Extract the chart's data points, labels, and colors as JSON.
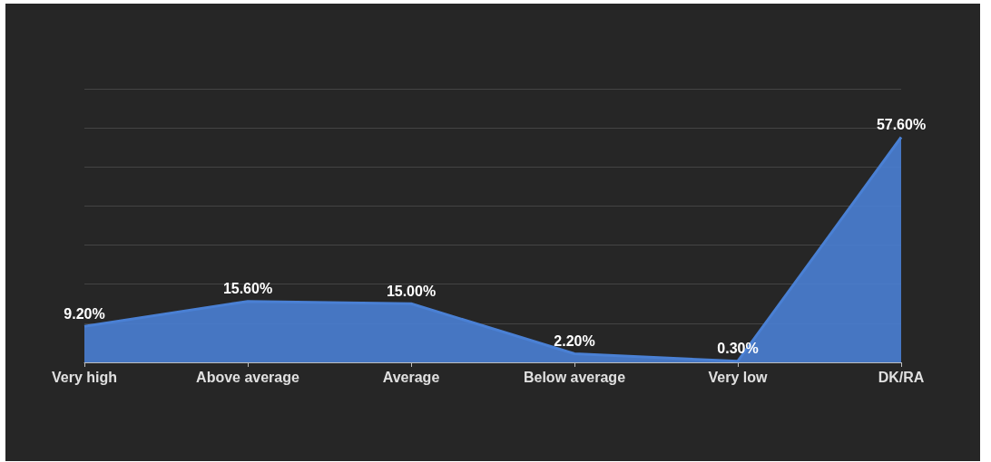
{
  "chart_data": {
    "type": "area",
    "categories": [
      "Very high",
      "Above average",
      "Average",
      "Below average",
      "Very low",
      "DK/RA"
    ],
    "series": [
      {
        "color": "#4a80d4",
        "values": [
          9.2,
          15.6,
          15.0,
          2.2,
          0.3,
          57.6
        ],
        "value_labels": [
          "9.20%",
          "15.60%",
          "15.00%",
          "2.20%",
          "0.30%",
          "57.60%"
        ]
      }
    ],
    "ylim": [
      0,
      70
    ],
    "yticks": [
      {
        "value": 0,
        "label": null
      },
      {
        "value": 10,
        "label": null
      },
      {
        "value": 20,
        "label": null
      },
      {
        "value": 30,
        "label": null
      },
      {
        "value": 40,
        "label": null
      },
      {
        "value": 50,
        "label": null
      },
      {
        "value": 60,
        "label": null
      },
      {
        "value": 70,
        "label": null
      }
    ],
    "grid": "y",
    "marker": "none",
    "tick_labels": "x"
  }
}
